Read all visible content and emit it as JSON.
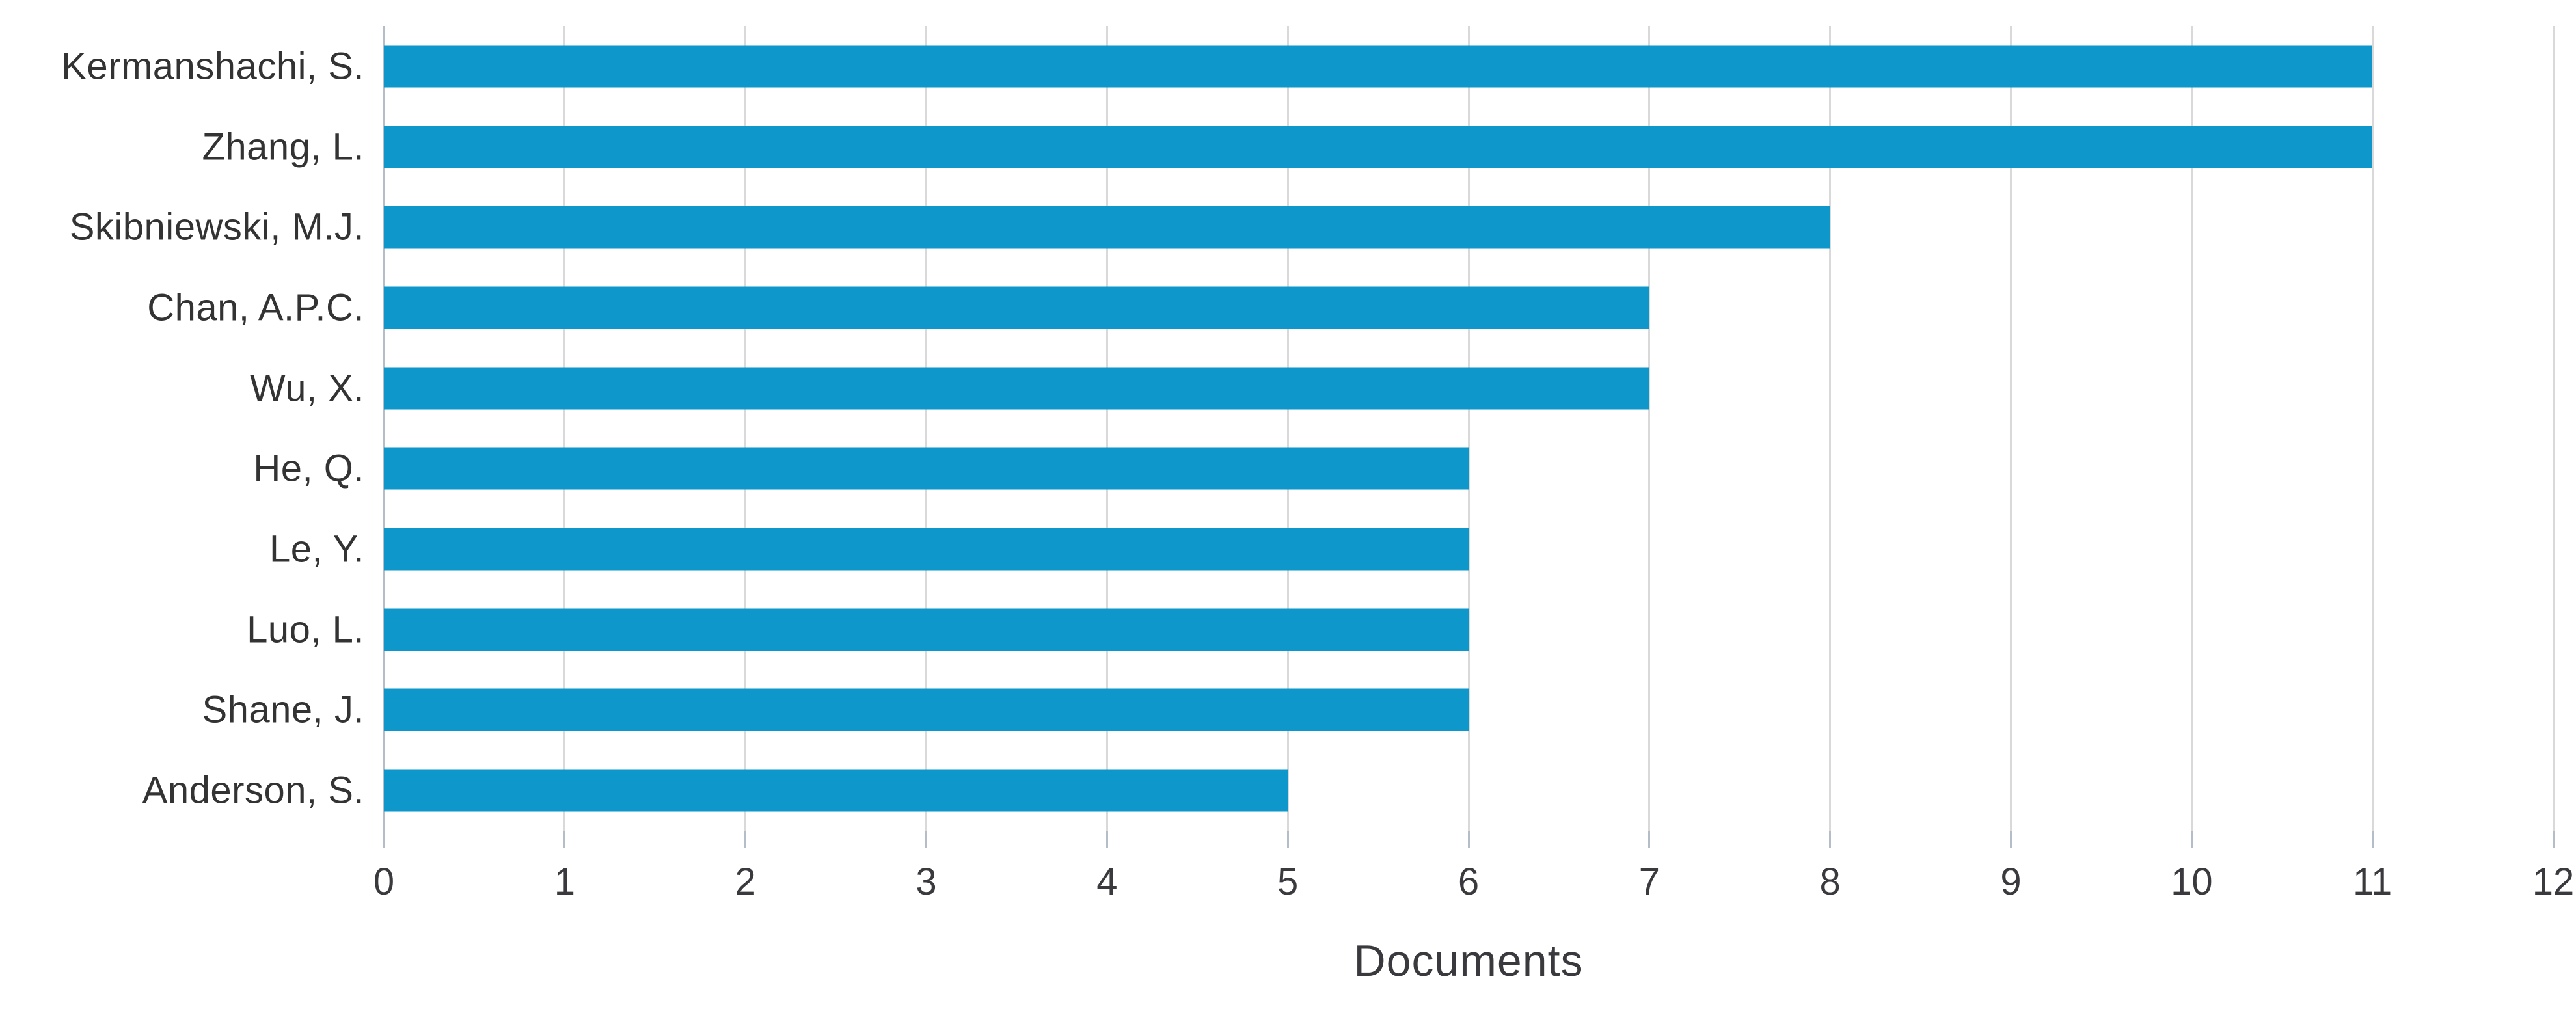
{
  "chart_data": {
    "type": "bar",
    "orientation": "horizontal",
    "title": "",
    "categories": [
      "Kermanshachi, S.",
      "Zhang, L.",
      "Skibniewski, M.J.",
      "Chan, A.P.C.",
      "Wu, X.",
      "He, Q.",
      "Le, Y.",
      "Luo, L.",
      "Shane, J.",
      "Anderson, S."
    ],
    "values": [
      11,
      11,
      8,
      7,
      7,
      6,
      6,
      6,
      6,
      5
    ],
    "xlabel": "Documents",
    "ylabel": "",
    "xlim": [
      0,
      12
    ],
    "xticks": [
      0,
      1,
      2,
      3,
      4,
      5,
      6,
      7,
      8,
      9,
      10,
      11,
      12
    ],
    "grid": "vertical",
    "legend": "none",
    "colors": {
      "bar": "#0d97cb",
      "gridline": "#d9d9d9",
      "axis_line": "#b5bdc9",
      "category_text": "#333333",
      "tick_text": "#3a3a3e",
      "background": "#ffffff"
    }
  }
}
